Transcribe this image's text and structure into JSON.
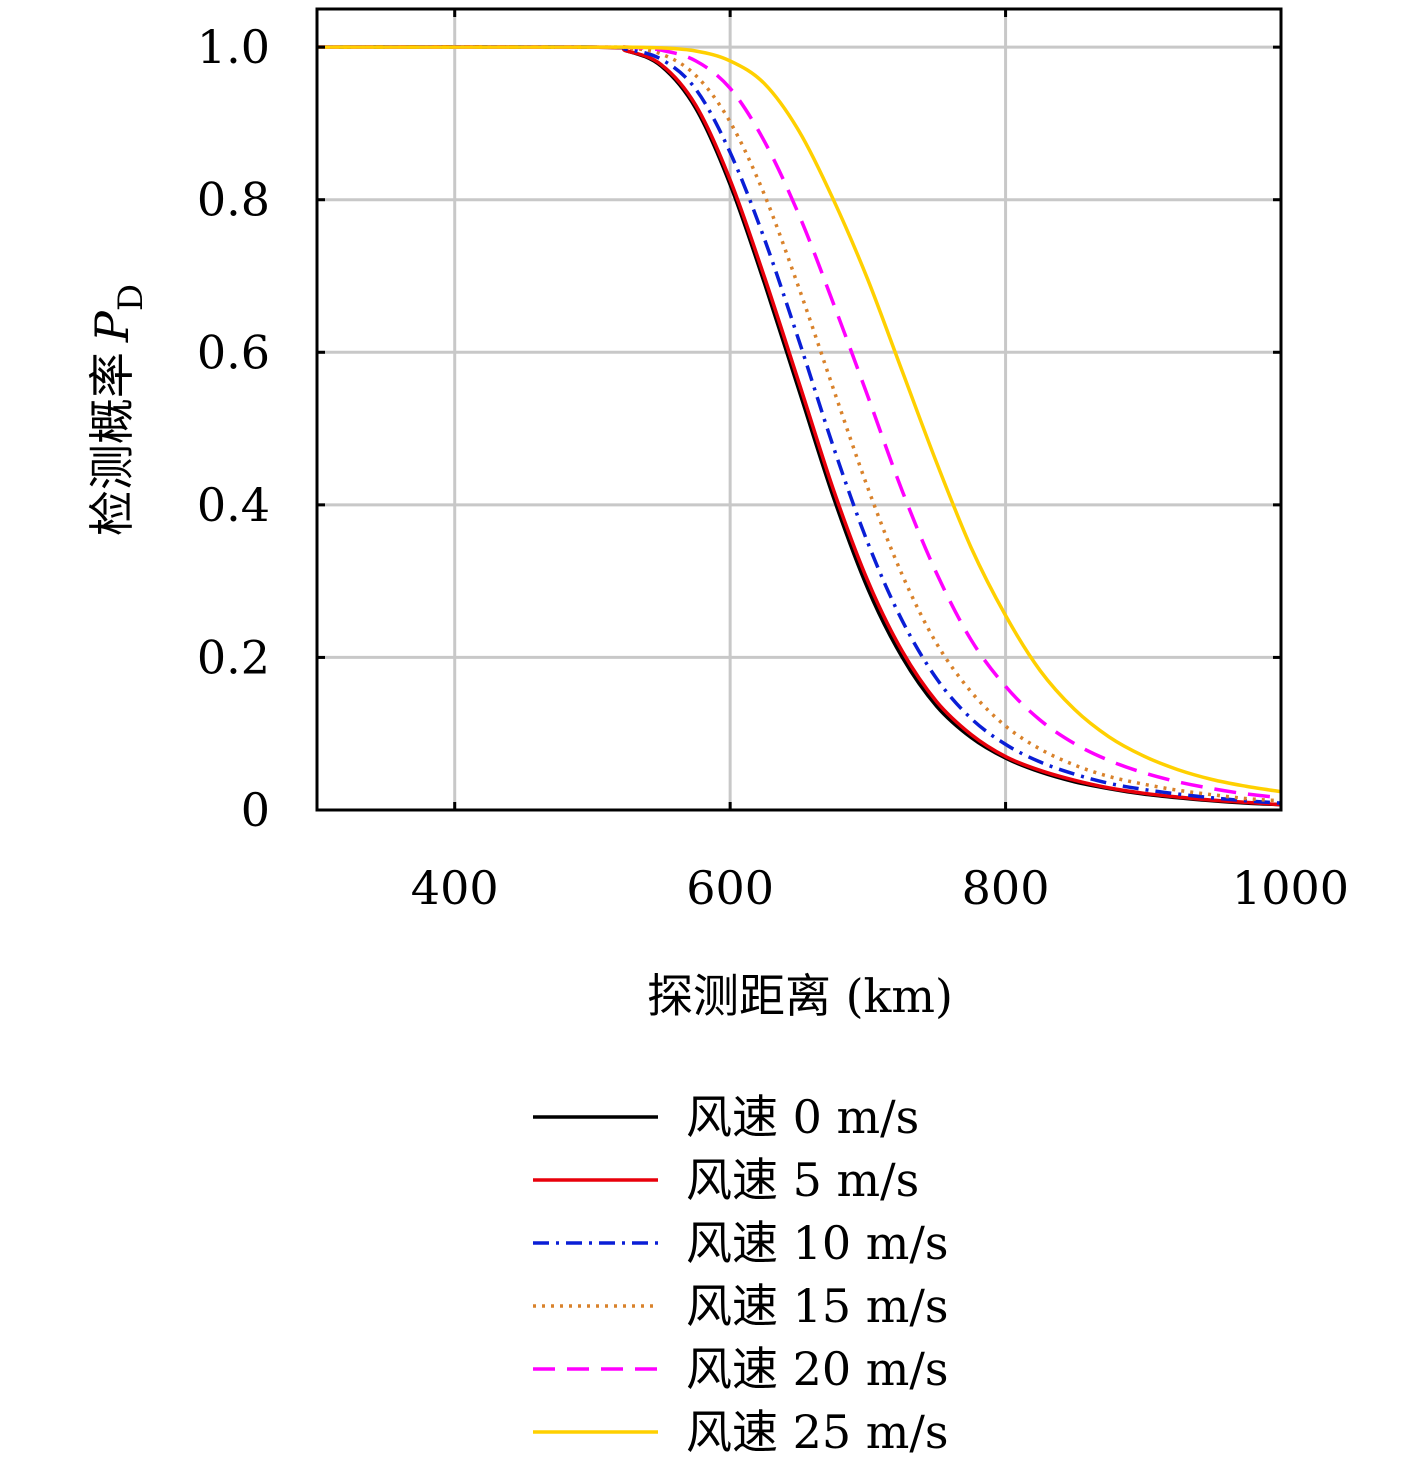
{
  "chart_data": {
    "type": "line",
    "xlabel": "探测距离 (km)",
    "ylabel": "检测概率",
    "ylabel_symbol": "P",
    "ylabel_subscript": "D",
    "xlim": [
      300,
      1000
    ],
    "ylim": [
      0,
      1.05
    ],
    "x_ticks": [
      400,
      600,
      800,
      1000
    ],
    "x_tick_labels": [
      "400",
      "600",
      "800",
      "1000"
    ],
    "y_ticks": [
      0,
      0.2,
      0.4,
      0.6,
      0.8,
      1.0
    ],
    "y_tick_labels": [
      "0",
      "0.2",
      "0.4",
      "0.6",
      "0.8",
      "1.0"
    ],
    "grid": true,
    "legend_position": "below",
    "x": [
      300,
      500,
      525,
      550,
      575,
      600,
      625,
      650,
      675,
      700,
      725,
      750,
      775,
      800,
      825,
      850,
      875,
      900,
      925,
      950,
      975,
      1000
    ],
    "series": [
      {
        "name": "风速 0 m/s",
        "color": "#000000",
        "dash": "solid",
        "values": [
          1.0,
          1.0,
          0.995,
          0.975,
          0.92,
          0.82,
          0.69,
          0.55,
          0.41,
          0.29,
          0.2,
          0.136,
          0.095,
          0.068,
          0.05,
          0.037,
          0.028,
          0.021,
          0.016,
          0.012,
          0.009,
          0.007
        ]
      },
      {
        "name": "风速 5 m/s",
        "color": "#e8000b",
        "dash": "solid",
        "values": [
          1.0,
          1.0,
          0.995,
          0.977,
          0.924,
          0.826,
          0.698,
          0.56,
          0.42,
          0.3,
          0.208,
          0.142,
          0.099,
          0.07,
          0.052,
          0.039,
          0.029,
          0.022,
          0.017,
          0.013,
          0.01,
          0.007
        ]
      },
      {
        "name": "风速 10 m/s",
        "color": "#0a1ed6",
        "dash": "dashdot",
        "values": [
          1.0,
          1.0,
          0.997,
          0.984,
          0.945,
          0.862,
          0.748,
          0.615,
          0.476,
          0.35,
          0.248,
          0.172,
          0.12,
          0.086,
          0.063,
          0.047,
          0.035,
          0.027,
          0.021,
          0.016,
          0.012,
          0.009
        ]
      },
      {
        "name": "风速 15 m/s",
        "color": "#d9822b",
        "dash": "dotted",
        "values": [
          1.0,
          1.0,
          0.999,
          0.991,
          0.963,
          0.902,
          0.806,
          0.684,
          0.552,
          0.422,
          0.308,
          0.218,
          0.155,
          0.11,
          0.08,
          0.059,
          0.044,
          0.034,
          0.026,
          0.02,
          0.015,
          0.012
        ]
      },
      {
        "name": "风速 20 m/s",
        "color": "#ff00ff",
        "dash": "dashed",
        "values": [
          1.0,
          1.0,
          1.0,
          0.996,
          0.982,
          0.946,
          0.876,
          0.78,
          0.664,
          0.542,
          0.418,
          0.31,
          0.223,
          0.162,
          0.118,
          0.087,
          0.065,
          0.049,
          0.037,
          0.028,
          0.021,
          0.016
        ]
      },
      {
        "name": "风速 25 m/s",
        "color": "#ffd000",
        "dash": "solid",
        "values": [
          1.0,
          1.0,
          1.0,
          0.999,
          0.995,
          0.982,
          0.952,
          0.89,
          0.8,
          0.695,
          0.575,
          0.455,
          0.344,
          0.255,
          0.183,
          0.132,
          0.096,
          0.071,
          0.053,
          0.04,
          0.031,
          0.024
        ]
      }
    ]
  }
}
